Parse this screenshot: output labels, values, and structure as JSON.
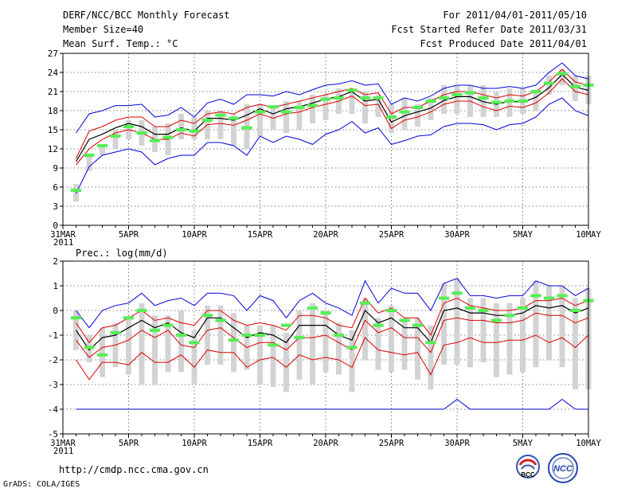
{
  "header": {
    "title": "DERF/NCC/BCC Monthly Forecast",
    "member_size": "Member Size=40",
    "variable": "Mean Surf. Temp.: °C",
    "period": "For 2011/04/01-2011/05/10",
    "started": "Fcst Started Refer Date 2011/03/31",
    "produced": "Fcst Produced Date 2011/04/01"
  },
  "footer": {
    "url": "http://cmdp.ncc.cma.gov.cn",
    "credit": "GrADS: COLA/IGES",
    "logo_bcc_text": "BCC",
    "logo_ncc_text": "NCC"
  },
  "colors": {
    "band": "#d3d3d3",
    "median": "#55ee55",
    "envelope": "#0000dd",
    "spread": "#dd0000",
    "mean": "#000000"
  },
  "chart_data": [
    {
      "type": "line",
      "name": "temperature",
      "title": "Mean Surf. Temp.: °C",
      "x_ticks": [
        {
          "day": 0,
          "label": "31MAR",
          "sub": "2011"
        },
        {
          "day": 5,
          "label": "5APR"
        },
        {
          "day": 10,
          "label": "10APR"
        },
        {
          "day": 15,
          "label": "15APR"
        },
        {
          "day": 20,
          "label": "20APR"
        },
        {
          "day": 25,
          "label": "25APR"
        },
        {
          "day": 30,
          "label": "30APR"
        },
        {
          "day": 35,
          "label": "5MAY"
        },
        {
          "day": 40,
          "label": "10MAY"
        }
      ],
      "xlim": [
        0,
        40
      ],
      "ylim": [
        0,
        27
      ],
      "y_ticks": [
        0,
        3,
        6,
        9,
        12,
        15,
        18,
        21,
        24,
        27
      ],
      "grid": true,
      "days": [
        1,
        2,
        3,
        4,
        5,
        6,
        7,
        8,
        9,
        10,
        11,
        12,
        13,
        14,
        15,
        16,
        17,
        18,
        19,
        20,
        21,
        22,
        23,
        24,
        25,
        26,
        27,
        28,
        29,
        30,
        31,
        32,
        33,
        34,
        35,
        36,
        37,
        38,
        39,
        40
      ],
      "series": [
        {
          "name": "max",
          "color": "envelope",
          "values": [
            14.5,
            17.5,
            18,
            18.8,
            18.8,
            19,
            17,
            17.3,
            18.5,
            17,
            19.2,
            19.8,
            19,
            20.5,
            20.5,
            20.3,
            21,
            20.5,
            21.3,
            22,
            22.2,
            22.7,
            22,
            22.2,
            19,
            20,
            19.5,
            20.3,
            21.5,
            22,
            22,
            21.5,
            21.5,
            21.8,
            21.5,
            22,
            24,
            25.5,
            23.5,
            23
          ]
        },
        {
          "name": "upper",
          "color": "spread",
          "values": [
            10.5,
            14.8,
            15.5,
            16.5,
            17,
            17,
            15.5,
            15.5,
            16.5,
            16,
            17.5,
            17.8,
            17.5,
            18.5,
            19,
            18.5,
            19,
            19.5,
            20,
            20.5,
            21,
            21.5,
            20.5,
            20.8,
            17.5,
            18.5,
            18.5,
            19.5,
            20.5,
            21,
            21,
            20.5,
            20,
            20.5,
            20.3,
            21,
            22.5,
            24.5,
            22.5,
            22
          ]
        },
        {
          "name": "mean",
          "color": "mean",
          "values": [
            10,
            13.5,
            14.3,
            15.3,
            16,
            15.5,
            14.3,
            14.3,
            15.3,
            14.8,
            16.8,
            16.8,
            16.5,
            17.3,
            18.3,
            17.5,
            18.3,
            18.6,
            19.2,
            19.8,
            20.2,
            21,
            19.5,
            19.8,
            16.2,
            17.2,
            17.8,
            18.4,
            19.6,
            20.2,
            20.2,
            19.4,
            19,
            19.5,
            19.3,
            20.1,
            21.6,
            23.7,
            21.7,
            21.2
          ]
        },
        {
          "name": "lower",
          "color": "spread",
          "values": [
            9.5,
            12,
            13.5,
            14.5,
            15,
            14.5,
            13.5,
            13.5,
            14.5,
            14,
            15.8,
            16,
            15.7,
            16.5,
            17.5,
            16.8,
            17.5,
            17.8,
            18.5,
            19,
            19.5,
            20.3,
            18.8,
            19,
            15.2,
            16.5,
            17,
            17.8,
            19,
            19.5,
            19.5,
            18.6,
            18,
            18.7,
            18.5,
            19.2,
            20.8,
            23,
            21,
            20.5
          ]
        },
        {
          "name": "min",
          "color": "envelope",
          "values": [
            5,
            9.2,
            11,
            11.5,
            12,
            11.5,
            9.5,
            10.5,
            11,
            11,
            13,
            13,
            12.5,
            11,
            14,
            13,
            14,
            13.5,
            12.7,
            14.3,
            15,
            16.3,
            14.5,
            15.3,
            12.7,
            13.3,
            14,
            14.2,
            15.5,
            16,
            16,
            15.8,
            15,
            15.8,
            16,
            17,
            19,
            20,
            18,
            17.2
          ]
        }
      ],
      "median": [
        5.5,
        11,
        12.5,
        14,
        15.5,
        14.5,
        13.3,
        13.8,
        15,
        14.8,
        16.5,
        17.3,
        16.8,
        15.3,
        17.8,
        18.6,
        17.8,
        18.5,
        18.8,
        19.8,
        20,
        21.2,
        20,
        20,
        17,
        17.8,
        18.5,
        19.5,
        20,
        20.5,
        20.8,
        20,
        19.3,
        19.5,
        19.5,
        21,
        22.3,
        23.8,
        21.8,
        22
      ],
      "bands": [
        [
          3.7,
          6.5
        ],
        [
          8.5,
          11.3
        ],
        [
          11,
          12.5
        ],
        [
          12,
          15
        ],
        [
          13.5,
          16.5
        ],
        [
          12.5,
          16.5
        ],
        [
          11.5,
          15.5
        ],
        [
          11,
          16
        ],
        [
          13.5,
          17.5
        ],
        [
          13.5,
          17
        ],
        [
          13.5,
          18
        ],
        [
          13.5,
          18
        ],
        [
          12.5,
          17.5
        ],
        [
          12,
          19
        ],
        [
          14,
          19
        ],
        [
          15,
          18.5
        ],
        [
          14.5,
          19.5
        ],
        [
          15,
          19.5
        ],
        [
          16,
          20.5
        ],
        [
          16.5,
          20.5
        ],
        [
          17.5,
          21.5
        ],
        [
          17.5,
          21
        ],
        [
          16,
          21
        ],
        [
          17,
          20.5
        ],
        [
          14.5,
          19
        ],
        [
          15,
          20
        ],
        [
          15.5,
          19
        ],
        [
          16.5,
          20
        ],
        [
          17.5,
          22
        ],
        [
          17.5,
          22
        ],
        [
          17,
          22
        ],
        [
          17,
          22
        ],
        [
          17,
          21
        ],
        [
          17,
          21.5
        ],
        [
          17.5,
          21.5
        ],
        [
          18,
          21
        ],
        [
          20.5,
          23.5
        ],
        [
          22,
          24.5
        ],
        [
          19.5,
          23.5
        ],
        [
          19,
          23.5
        ]
      ]
    },
    {
      "type": "line",
      "name": "precipitation",
      "title": "Prec.: log(mm/d)",
      "x_ticks": [
        {
          "day": 0,
          "label": "31MAR",
          "sub": "2011"
        },
        {
          "day": 5,
          "label": "5APR"
        },
        {
          "day": 10,
          "label": "10APR"
        },
        {
          "day": 15,
          "label": "15APR"
        },
        {
          "day": 20,
          "label": "20APR"
        },
        {
          "day": 25,
          "label": "25APR"
        },
        {
          "day": 30,
          "label": "30APR"
        },
        {
          "day": 35,
          "label": "5MAY"
        },
        {
          "day": 40,
          "label": "10MAY"
        }
      ],
      "xlim": [
        0,
        40
      ],
      "ylim": [
        -5,
        2
      ],
      "y_ticks": [
        -5,
        -4,
        -3,
        -2,
        -1,
        0,
        1,
        2
      ],
      "grid": true,
      "days": [
        1,
        2,
        3,
        4,
        5,
        6,
        7,
        8,
        9,
        10,
        11,
        12,
        13,
        14,
        15,
        16,
        17,
        18,
        19,
        20,
        21,
        22,
        23,
        24,
        25,
        26,
        27,
        28,
        29,
        30,
        31,
        32,
        33,
        34,
        35,
        36,
        37,
        38,
        39,
        40
      ],
      "series": [
        {
          "name": "max",
          "color": "envelope",
          "values": [
            0,
            -0.7,
            0,
            0.2,
            0.3,
            0.7,
            0.2,
            0.4,
            0.5,
            0.2,
            0.7,
            0.7,
            0.6,
            0,
            0.6,
            0.4,
            -0.3,
            0.4,
            0.7,
            0.3,
            0.1,
            -0.2,
            1.2,
            0.3,
            0.9,
            0.7,
            0.7,
            0,
            1.1,
            1.3,
            0.6,
            0.6,
            0.5,
            0.6,
            0.6,
            1.2,
            1,
            1,
            0.6,
            0.9
          ]
        },
        {
          "name": "upper",
          "color": "spread",
          "values": [
            -0.5,
            -1.3,
            -0.7,
            -0.6,
            -0.3,
            0,
            -0.4,
            -0.3,
            -0.5,
            -0.6,
            0,
            0,
            -0.4,
            -0.6,
            -0.5,
            -0.6,
            -0.8,
            -0.2,
            -0.2,
            -0.3,
            -0.6,
            -0.7,
            0.5,
            -0.1,
            0.1,
            -0.3,
            -0.3,
            -1,
            0.3,
            0.5,
            0.2,
            0.1,
            0,
            0,
            0.1,
            0.4,
            0.4,
            0.5,
            0.2,
            0.4
          ]
        },
        {
          "name": "mean",
          "color": "mean",
          "values": [
            -0.8,
            -1.6,
            -1.1,
            -1,
            -0.7,
            -0.4,
            -0.7,
            -0.5,
            -0.9,
            -1.1,
            -0.3,
            -0.3,
            -0.7,
            -1.1,
            -0.9,
            -1,
            -1.3,
            -0.6,
            -0.6,
            -0.6,
            -1,
            -1.2,
            0,
            -0.5,
            -0.3,
            -0.7,
            -0.7,
            -1.3,
            0,
            0.1,
            -0.1,
            -0.1,
            -0.2,
            -0.2,
            -0.1,
            0.2,
            0.1,
            0.2,
            -0.1,
            0.1
          ]
        },
        {
          "name": "lower",
          "color": "spread",
          "values": [
            -1.2,
            -1.9,
            -1.5,
            -1.4,
            -1.2,
            -0.8,
            -1.1,
            -0.8,
            -1.4,
            -1.5,
            -0.8,
            -0.7,
            -1.1,
            -1.5,
            -1.3,
            -1.3,
            -1.6,
            -1.1,
            -1.1,
            -1,
            -1.3,
            -1.6,
            -0.4,
            -0.9,
            -0.7,
            -1.1,
            -1.1,
            -1.7,
            -0.4,
            -0.3,
            -0.4,
            -0.4,
            -0.5,
            -0.5,
            -0.4,
            -0.1,
            -0.2,
            -0.2,
            -0.5,
            -0.3
          ]
        },
        {
          "name": "lower2",
          "color": "spread",
          "values": [
            -2,
            -2.8,
            -2.1,
            -2.1,
            -2.2,
            -1.7,
            -2.1,
            -2.1,
            -1.8,
            -2.3,
            -1.6,
            -1.7,
            -1.7,
            -2.3,
            -2,
            -1.9,
            -2.3,
            -1.8,
            -2,
            -1.9,
            -2,
            -2.3,
            -1.1,
            -1.6,
            -1.7,
            -1.8,
            -1.7,
            -2.6,
            -1.4,
            -1.3,
            -1.1,
            -1.3,
            -1.3,
            -1.2,
            -1.2,
            -1,
            -1.3,
            -1.1,
            -1.5,
            -1
          ]
        },
        {
          "name": "min",
          "color": "envelope",
          "values": [
            -4,
            -4,
            -4,
            -4,
            -4,
            -4,
            -4,
            -4,
            -4,
            -4,
            -4,
            -4,
            -4,
            -4,
            -4,
            -4,
            -4,
            -4,
            -4,
            -4,
            -4,
            -4,
            -4,
            -4,
            -4,
            -4,
            -4,
            -4,
            -4,
            -3.6,
            -4,
            -4,
            -4,
            -4,
            -4,
            -4,
            -4,
            -3.6,
            -4,
            -4
          ]
        }
      ],
      "median": [
        -0.3,
        -1.5,
        -1.8,
        -0.9,
        -0.3,
        0,
        -0.8,
        -0.6,
        -1,
        -1.3,
        -0.2,
        -0.4,
        -1.2,
        -1,
        -1,
        -1.4,
        -0.6,
        -1.1,
        0.1,
        -0.1,
        -1,
        -1.5,
        0.3,
        -0.6,
        0,
        -0.4,
        -0.6,
        -1.3,
        0.5,
        0.7,
        0.1,
        0,
        -0.4,
        -0.2,
        0.1,
        0.6,
        0.5,
        0.6,
        0,
        0.4
      ],
      "bands": [
        [
          -1.6,
          0
        ],
        [
          -2.1,
          -1
        ],
        [
          -2.7,
          -0.7
        ],
        [
          -2.3,
          -0.5
        ],
        [
          -2.6,
          -0.3
        ],
        [
          -3,
          0.3
        ],
        [
          -3,
          -0.2
        ],
        [
          -2.5,
          -0.2
        ],
        [
          -2.5,
          0
        ],
        [
          -3,
          -0.8
        ],
        [
          -2.2,
          0.2
        ],
        [
          -2.2,
          0.2
        ],
        [
          -2.5,
          -0.1
        ],
        [
          -2.4,
          -0.6
        ],
        [
          -3,
          -0.6
        ],
        [
          -3.1,
          -0.6
        ],
        [
          -3.3,
          -0.9
        ],
        [
          -2.8,
          0
        ],
        [
          -3,
          0.3
        ],
        [
          -2.5,
          0
        ],
        [
          -2.6,
          -0.5
        ],
        [
          -3.3,
          -0.8
        ],
        [
          -2,
          0.5
        ],
        [
          -2.4,
          -0.3
        ],
        [
          -2.5,
          0.2
        ],
        [
          -2.4,
          -0.3
        ],
        [
          -2.8,
          -0.3
        ],
        [
          -3.2,
          -0.6
        ],
        [
          -2.2,
          1.1
        ],
        [
          -2.2,
          1.3
        ],
        [
          -2.3,
          0.5
        ],
        [
          -2.1,
          0.5
        ],
        [
          -2.7,
          0.3
        ],
        [
          -2.6,
          0.3
        ],
        [
          -2.5,
          0.5
        ],
        [
          -2.3,
          1.2
        ],
        [
          -2,
          1
        ],
        [
          -2.3,
          1
        ],
        [
          -3.2,
          0.5
        ],
        [
          -3.2,
          0.9
        ]
      ]
    }
  ]
}
